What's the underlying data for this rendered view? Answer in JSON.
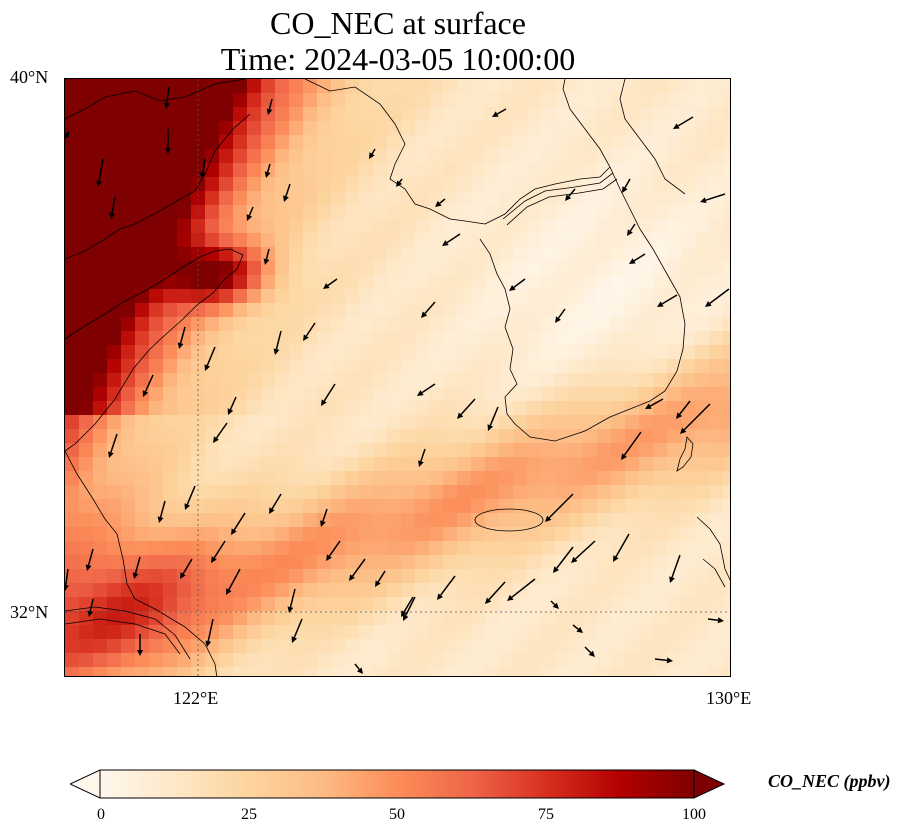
{
  "title": {
    "line1": "CO_NEC at surface",
    "line2": "Time: 2024-03-05 10:00:00"
  },
  "axes": {
    "lat_labels": [
      "40°N",
      "32°N"
    ],
    "lon_labels": [
      "122°E",
      "130°E"
    ],
    "lon_range": [
      120,
      130
    ],
    "lat_range": [
      31,
      40
    ],
    "gridlines": "dotted at 122°E and 32°N"
  },
  "colorbar": {
    "label": "CO_NEC (ppbv)",
    "ticks": [
      "0",
      "25",
      "50",
      "75",
      "100"
    ],
    "range": [
      0,
      100
    ],
    "colormap": "OrRd",
    "extend": "both",
    "colors": [
      "#fff7ec",
      "#fee8c8",
      "#fdd49e",
      "#fdbb84",
      "#fc8d59",
      "#ef6548",
      "#d7301f",
      "#b30000",
      "#7f0000"
    ]
  },
  "chart_data": {
    "type": "heatmap",
    "variable": "CO_NEC",
    "level": "surface",
    "units": "ppbv",
    "time": "2024-03-05 10:00:00",
    "pattern": "highest (>100 ppbv) along the northwest coast of the domain (Shandong / Bohai region), moderate (40-60 ppbv) band across the southern Yellow Sea around Jeju, low (5-25 ppbv) over the Korean Peninsula and northern Yellow Sea",
    "wind_vectors": "predominantly northerly to northeasterly flow (arrows pointing south-southwest) over the Yellow Sea; westerly flow in the northeast corner"
  },
  "map_regions": [
    "Shandong Peninsula",
    "Yellow Sea",
    "Korean Peninsula",
    "Jeju Island",
    "Yangtze River mouth"
  ]
}
